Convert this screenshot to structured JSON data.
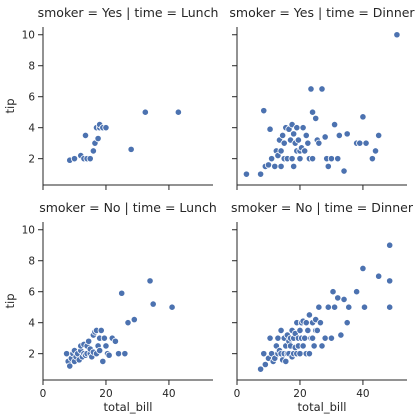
{
  "chart_data": {
    "type": "scatter",
    "xlabel": "total_bill",
    "ylabel": "tip",
    "xlim": [
      0,
      54
    ],
    "ylim": [
      0.3,
      10.5
    ],
    "xticks": [
      0,
      20,
      40
    ],
    "yticks": [
      2,
      4,
      6,
      8,
      10
    ],
    "point_color": "#4c72b0",
    "panels": [
      {
        "title": "smoker = Yes | time = Lunch",
        "x": [
          8.5,
          10.0,
          12.0,
          13.0,
          13.5,
          14.0,
          15.0,
          16.0,
          16.5,
          17.0,
          17.5,
          18.0,
          18.0,
          19.0,
          20.0,
          28.0,
          32.5,
          43.0
        ],
        "y": [
          1.9,
          2.0,
          2.2,
          2.0,
          3.5,
          2.0,
          2.0,
          2.5,
          3.0,
          4.0,
          3.3,
          4.0,
          4.2,
          4.0,
          4.0,
          2.6,
          5.0,
          5.0
        ]
      },
      {
        "title": "smoker = Yes | time = Dinner",
        "x": [
          3.0,
          7.5,
          8.5,
          9.0,
          10.0,
          10.5,
          11.0,
          12.0,
          12.5,
          13.0,
          13.5,
          14.0,
          14.0,
          14.5,
          15.0,
          15.0,
          15.5,
          16.0,
          16.5,
          17.0,
          17.5,
          17.5,
          18.0,
          18.0,
          18.5,
          19.0,
          19.0,
          19.5,
          20.0,
          20.0,
          20.5,
          21.0,
          21.5,
          22.0,
          22.5,
          23.0,
          23.5,
          24.0,
          24.0,
          25.0,
          25.5,
          26.0,
          27.0,
          28.0,
          28.5,
          29.0,
          30.0,
          31.0,
          32.0,
          32.5,
          34.0,
          35.0,
          38.0,
          39.0,
          40.0,
          41.0,
          43.0,
          44.0,
          45.0,
          50.8
        ],
        "y": [
          1.0,
          1.0,
          5.1,
          1.5,
          1.6,
          3.9,
          2.0,
          1.5,
          2.5,
          2.2,
          3.2,
          1.5,
          2.5,
          3.5,
          2.0,
          3.0,
          4.0,
          2.0,
          3.9,
          3.2,
          4.2,
          2.0,
          3.6,
          1.5,
          3.0,
          4.0,
          2.5,
          3.2,
          2.0,
          2.5,
          2.7,
          4.0,
          2.5,
          3.5,
          3.0,
          2.0,
          6.5,
          5.0,
          2.0,
          4.6,
          3.2,
          3.0,
          6.5,
          3.4,
          2.0,
          1.5,
          2.0,
          4.2,
          2.0,
          3.5,
          1.2,
          3.6,
          3.0,
          3.0,
          4.7,
          3.0,
          2.0,
          2.5,
          3.5,
          10.0
        ]
      },
      {
        "title": "smoker = No | time = Lunch",
        "x": [
          7.5,
          8.0,
          8.5,
          9.0,
          9.5,
          10.0,
          10.0,
          10.5,
          11.0,
          11.5,
          12.0,
          12.0,
          12.5,
          13.0,
          13.0,
          13.5,
          14.0,
          14.0,
          14.5,
          15.0,
          15.0,
          15.5,
          16.0,
          16.0,
          16.5,
          17.0,
          17.0,
          17.5,
          18.0,
          18.0,
          18.5,
          19.0,
          19.5,
          20.0,
          20.5,
          21.0,
          22.0,
          23.0,
          24.0,
          25.0,
          26.0,
          27.0,
          29.0,
          34.0,
          35.0,
          41.0
        ],
        "y": [
          2.0,
          1.5,
          1.2,
          1.7,
          2.0,
          1.5,
          2.2,
          1.8,
          2.0,
          1.6,
          2.2,
          2.5,
          1.8,
          2.0,
          2.6,
          1.9,
          2.5,
          2.0,
          2.8,
          2.0,
          2.3,
          1.8,
          3.2,
          2.1,
          3.4,
          2.0,
          3.5,
          2.5,
          3.0,
          2.2,
          3.5,
          1.5,
          3.0,
          2.5,
          2.0,
          1.9,
          3.0,
          2.8,
          2.0,
          5.9,
          2.0,
          4.0,
          4.2,
          6.7,
          5.2,
          5.0
        ]
      },
      {
        "title": "smoker = No | time = Dinner",
        "x": [
          7.5,
          8.5,
          9.0,
          10.0,
          10.5,
          11.0,
          11.5,
          12.0,
          12.5,
          13.0,
          13.0,
          13.5,
          14.0,
          14.0,
          14.5,
          15.0,
          15.0,
          15.5,
          15.5,
          16.0,
          16.0,
          16.5,
          16.5,
          17.0,
          17.0,
          17.5,
          17.5,
          18.0,
          18.0,
          18.5,
          18.5,
          19.0,
          19.0,
          19.5,
          19.5,
          20.0,
          20.0,
          20.5,
          20.5,
          21.0,
          21.0,
          21.5,
          22.0,
          22.0,
          22.5,
          23.0,
          23.0,
          23.5,
          24.0,
          24.0,
          24.5,
          25.0,
          25.0,
          25.5,
          26.0,
          26.5,
          27.0,
          28.0,
          29.0,
          30.0,
          30.5,
          31.0,
          32.0,
          33.0,
          34.0,
          35.0,
          35.5,
          38.0,
          40.0,
          40.5,
          45.0,
          48.5,
          48.5,
          48.5
        ],
        "y": [
          1.0,
          2.0,
          1.3,
          1.7,
          3.0,
          2.0,
          1.5,
          1.7,
          2.5,
          2.0,
          3.0,
          2.2,
          2.0,
          3.5,
          1.6,
          2.0,
          3.0,
          2.5,
          1.5,
          2.0,
          3.2,
          2.8,
          2.0,
          3.0,
          2.5,
          3.5,
          1.8,
          2.0,
          3.0,
          3.3,
          2.4,
          2.0,
          4.0,
          3.0,
          2.5,
          2.0,
          3.5,
          4.0,
          3.0,
          2.5,
          4.1,
          3.0,
          2.0,
          4.0,
          3.5,
          2.0,
          4.5,
          3.0,
          4.0,
          3.0,
          2.5,
          3.5,
          4.2,
          3.5,
          5.0,
          4.0,
          2.5,
          3.0,
          5.0,
          3.0,
          6.0,
          5.0,
          5.6,
          3.2,
          5.5,
          4.0,
          5.0,
          6.0,
          7.5,
          5.0,
          7.0,
          9.0,
          6.7,
          5.0
        ]
      }
    ]
  }
}
